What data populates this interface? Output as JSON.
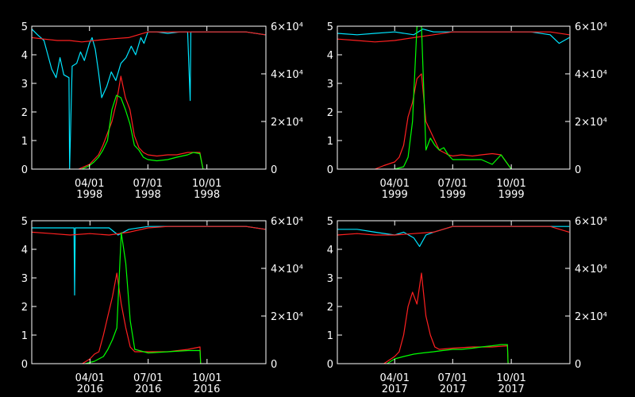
{
  "colors": {
    "background": "#000000",
    "axes": "#ffffff",
    "cyan": "#00e5ff",
    "green": "#00ff00",
    "red": "#ff2020"
  },
  "chart_data": [
    {
      "type": "line",
      "ylim": [
        0,
        5
      ],
      "y2lim": [
        0,
        60000
      ],
      "yticks": [
        "0",
        "1",
        "2",
        "3",
        "4",
        "5"
      ],
      "y2ticks": [
        "0",
        "2×10⁴",
        "4×10⁴",
        "6×10⁴"
      ],
      "xlim": [
        "1998-01-01",
        "1999-01-01"
      ],
      "xticks": [
        {
          "date": "1998-04-01",
          "label": "04/01",
          "year": "1998"
        },
        {
          "date": "1998-07-01",
          "label": "07/01",
          "year": "1998"
        },
        {
          "date": "1998-10-01",
          "label": "10/01",
          "year": "1998"
        }
      ],
      "series": [
        {
          "color": "cyan",
          "axis": "left",
          "x": [
            "1998-01-01",
            "1998-01-10",
            "1998-01-20",
            "1998-02-01",
            "1998-02-08",
            "1998-02-14",
            "1998-02-20",
            "1998-02-28",
            "1998-03-01",
            "1998-03-05",
            "1998-03-12",
            "1998-03-18",
            "1998-03-24",
            "1998-04-01",
            "1998-04-05",
            "1998-04-10",
            "1998-04-15",
            "1998-04-20",
            "1998-04-28",
            "1998-05-05",
            "1998-05-12",
            "1998-05-20",
            "1998-05-28",
            "1998-06-05",
            "1998-06-12",
            "1998-06-20",
            "1998-06-25",
            "1998-07-01",
            "1998-07-15",
            "1998-08-01",
            "1998-08-20",
            "1998-09-01",
            "1998-09-05",
            "1998-09-06",
            "1998-09-09",
            "1998-09-15",
            "1998-10-01",
            "1998-11-01",
            "1998-12-01",
            "1998-12-31"
          ],
          "y": [
            4.9,
            4.7,
            4.5,
            3.5,
            3.2,
            3.9,
            3.3,
            3.2,
            0,
            3.6,
            3.7,
            4.1,
            3.8,
            4.4,
            4.6,
            4.2,
            3.4,
            2.5,
            2.9,
            3.4,
            3.1,
            3.7,
            3.9,
            4.3,
            4.0,
            4.6,
            4.4,
            4.8,
            4.8,
            4.75,
            4.8,
            4.8,
            2.4,
            4.8,
            4.8,
            4.8,
            4.8,
            4.8,
            4.8,
            4.7
          ]
        },
        {
          "color": "red",
          "axis": "left",
          "x": [
            "1998-01-01",
            "1998-01-20",
            "1998-02-10",
            "1998-03-01",
            "1998-03-20",
            "1998-04-10",
            "1998-05-01",
            "1998-06-01",
            "1998-07-01",
            "1998-08-01",
            "1998-09-01",
            "1998-10-01",
            "1998-11-01",
            "1998-12-01",
            "1998-12-31"
          ],
          "y": [
            4.6,
            4.55,
            4.5,
            4.5,
            4.45,
            4.5,
            4.55,
            4.6,
            4.8,
            4.8,
            4.8,
            4.8,
            4.8,
            4.8,
            4.7
          ]
        },
        {
          "color": "red",
          "axis": "right",
          "x": [
            "1998-03-15",
            "1998-04-01",
            "1998-04-08",
            "1998-04-15",
            "1998-04-22",
            "1998-04-29",
            "1998-05-06",
            "1998-05-13",
            "1998-05-20",
            "1998-05-27",
            "1998-06-03",
            "1998-06-10",
            "1998-06-17",
            "1998-06-24",
            "1998-07-01",
            "1998-07-15",
            "1998-08-01",
            "1998-08-15",
            "1998-09-01",
            "1998-09-10",
            "1998-09-20",
            "1998-09-25"
          ],
          "y": [
            0,
            2000,
            4000,
            6000,
            10000,
            15000,
            20000,
            28000,
            39000,
            30000,
            25000,
            14000,
            9000,
            7000,
            6000,
            5500,
            6000,
            6000,
            7000,
            7000,
            7000,
            0
          ]
        },
        {
          "color": "green",
          "axis": "right",
          "x": [
            "1998-03-20",
            "1998-04-01",
            "1998-04-08",
            "1998-04-15",
            "1998-04-22",
            "1998-04-29",
            "1998-05-06",
            "1998-05-13",
            "1998-05-20",
            "1998-05-27",
            "1998-06-03",
            "1998-06-10",
            "1998-06-17",
            "1998-06-24",
            "1998-07-01",
            "1998-07-15",
            "1998-08-01",
            "1998-08-15",
            "1998-09-01",
            "1998-09-10",
            "1998-09-20",
            "1998-09-25"
          ],
          "y": [
            0,
            1500,
            3000,
            5000,
            8000,
            12000,
            25000,
            31000,
            30000,
            25000,
            19000,
            10000,
            8000,
            5000,
            4000,
            3500,
            4000,
            5000,
            6000,
            7000,
            6500,
            0
          ]
        }
      ]
    },
    {
      "type": "line",
      "ylim": [
        0,
        5
      ],
      "y2lim": [
        0,
        60000
      ],
      "yticks": [
        "0",
        "1",
        "2",
        "3",
        "4",
        "5"
      ],
      "y2ticks": [
        "0",
        "2×10⁴",
        "4×10⁴",
        "6×10⁴"
      ],
      "xlim": [
        "1999-01-01",
        "2000-01-01"
      ],
      "xticks": [
        {
          "date": "1999-04-01",
          "label": "04/01",
          "year": "1999"
        },
        {
          "date": "1999-07-01",
          "label": "07/01",
          "year": "1999"
        },
        {
          "date": "1999-10-01",
          "label": "10/01",
          "year": "1999"
        }
      ],
      "series": [
        {
          "color": "cyan",
          "axis": "left",
          "x": [
            "1999-01-01",
            "1999-02-01",
            "1999-03-01",
            "1999-04-01",
            "1999-05-01",
            "1999-05-15",
            "1999-06-01",
            "1999-07-01",
            "1999-08-01",
            "1999-09-01",
            "1999-10-01",
            "1999-11-01",
            "1999-12-01",
            "1999-12-15",
            "1999-12-31"
          ],
          "y": [
            4.75,
            4.7,
            4.75,
            4.8,
            4.7,
            4.9,
            4.8,
            4.8,
            4.8,
            4.8,
            4.8,
            4.8,
            4.7,
            4.4,
            4.6
          ]
        },
        {
          "color": "red",
          "axis": "left",
          "x": [
            "1999-01-01",
            "1999-02-01",
            "1999-03-01",
            "1999-04-01",
            "1999-05-01",
            "1999-06-01",
            "1999-07-01",
            "1999-08-01",
            "1999-09-01",
            "1999-10-01",
            "1999-11-01",
            "1999-12-01",
            "1999-12-31"
          ],
          "y": [
            4.55,
            4.5,
            4.45,
            4.5,
            4.6,
            4.7,
            4.8,
            4.8,
            4.8,
            4.8,
            4.8,
            4.8,
            4.7
          ]
        },
        {
          "color": "red",
          "axis": "right",
          "x": [
            "1999-03-01",
            "1999-03-15",
            "1999-04-01",
            "1999-04-08",
            "1999-04-15",
            "1999-04-22",
            "1999-04-29",
            "1999-05-06",
            "1999-05-13",
            "1999-05-20",
            "1999-05-27",
            "1999-06-03",
            "1999-06-10",
            "1999-06-17",
            "1999-06-24",
            "1999-07-01",
            "1999-07-15",
            "1999-08-01",
            "1999-08-15",
            "1999-09-01",
            "1999-09-15",
            "1999-10-01"
          ],
          "y": [
            0,
            1500,
            3000,
            5000,
            10000,
            22000,
            28000,
            38000,
            40000,
            20000,
            16000,
            12000,
            8000,
            7000,
            6000,
            5500,
            6000,
            5500,
            6000,
            6500,
            6000,
            0
          ]
        },
        {
          "color": "green",
          "axis": "right",
          "x": [
            "1999-04-01",
            "1999-04-15",
            "1999-04-22",
            "1999-04-29",
            "1999-05-06",
            "1999-05-13",
            "1999-05-20",
            "1999-05-27",
            "1999-06-03",
            "1999-06-10",
            "1999-06-17",
            "1999-06-24",
            "1999-07-01",
            "1999-08-01",
            "1999-08-15",
            "1999-09-01",
            "1999-09-15",
            "1999-10-01"
          ],
          "y": [
            0,
            1000,
            5000,
            20000,
            60000,
            60000,
            8000,
            13000,
            10000,
            8000,
            9000,
            6000,
            4000,
            4000,
            4000,
            2000,
            6000,
            0
          ]
        }
      ]
    },
    {
      "type": "line",
      "ylim": [
        0,
        5
      ],
      "y2lim": [
        0,
        60000
      ],
      "yticks": [
        "0",
        "1",
        "2",
        "3",
        "4",
        "5"
      ],
      "y2ticks": [
        "0",
        "2×10⁴",
        "4×10⁴",
        "6×10⁴"
      ],
      "xlim": [
        "2016-01-01",
        "2017-01-01"
      ],
      "xticks": [
        {
          "date": "2016-04-01",
          "label": "04/01",
          "year": "2016"
        },
        {
          "date": "2016-07-01",
          "label": "07/01",
          "year": "2016"
        },
        {
          "date": "2016-10-01",
          "label": "10/01",
          "year": "2016"
        }
      ],
      "series": [
        {
          "color": "cyan",
          "axis": "left",
          "x": [
            "2016-01-01",
            "2016-02-01",
            "2016-03-01",
            "2016-03-07",
            "2016-03-08",
            "2016-03-09",
            "2016-04-01",
            "2016-05-01",
            "2016-05-15",
            "2016-06-01",
            "2016-07-01",
            "2016-08-01",
            "2016-09-01",
            "2016-10-01",
            "2016-11-01",
            "2016-12-01",
            "2016-12-31"
          ],
          "y": [
            4.75,
            4.75,
            4.75,
            4.75,
            2.4,
            4.75,
            4.75,
            4.75,
            4.5,
            4.7,
            4.8,
            4.8,
            4.8,
            4.8,
            4.8,
            4.8,
            4.7
          ]
        },
        {
          "color": "red",
          "axis": "left",
          "x": [
            "2016-01-01",
            "2016-02-01",
            "2016-03-01",
            "2016-04-01",
            "2016-05-01",
            "2016-06-01",
            "2016-07-01",
            "2016-08-01",
            "2016-09-01",
            "2016-10-01",
            "2016-11-01",
            "2016-12-01",
            "2016-12-31"
          ],
          "y": [
            4.6,
            4.55,
            4.5,
            4.55,
            4.5,
            4.6,
            4.75,
            4.8,
            4.8,
            4.8,
            4.8,
            4.8,
            4.7
          ]
        },
        {
          "color": "red",
          "axis": "right",
          "x": [
            "2016-03-20",
            "2016-04-01",
            "2016-04-08",
            "2016-04-15",
            "2016-04-22",
            "2016-04-29",
            "2016-05-06",
            "2016-05-13",
            "2016-05-20",
            "2016-05-27",
            "2016-06-03",
            "2016-06-10",
            "2016-07-01",
            "2016-08-01",
            "2016-09-01",
            "2016-09-20",
            "2016-09-21"
          ],
          "y": [
            0,
            2000,
            4000,
            5000,
            12000,
            20000,
            28000,
            38000,
            25000,
            15000,
            7000,
            5000,
            5000,
            5000,
            6000,
            7000,
            0
          ]
        },
        {
          "color": "green",
          "axis": "right",
          "x": [
            "2016-03-25",
            "2016-04-08",
            "2016-04-22",
            "2016-04-29",
            "2016-05-06",
            "2016-05-13",
            "2016-05-20",
            "2016-05-27",
            "2016-06-03",
            "2016-06-10",
            "2016-07-01",
            "2016-08-01",
            "2016-09-01",
            "2016-09-20",
            "2016-09-21"
          ],
          "y": [
            0,
            1000,
            3000,
            6000,
            10000,
            15000,
            55000,
            42000,
            18000,
            6000,
            4500,
            5000,
            5500,
            5500,
            0
          ]
        }
      ]
    },
    {
      "type": "line",
      "ylim": [
        0,
        5
      ],
      "y2lim": [
        0,
        60000
      ],
      "yticks": [
        "0",
        "1",
        "2",
        "3",
        "4",
        "5"
      ],
      "y2ticks": [
        "0",
        "2×10⁴",
        "4×10⁴",
        "6×10⁴"
      ],
      "xlim": [
        "2017-01-01",
        "2018-01-01"
      ],
      "xticks": [
        {
          "date": "2017-04-01",
          "label": "04/01",
          "year": "2017"
        },
        {
          "date": "2017-07-01",
          "label": "07/01",
          "year": "2017"
        },
        {
          "date": "2017-10-01",
          "label": "10/01",
          "year": "2017"
        }
      ],
      "series": [
        {
          "color": "cyan",
          "axis": "left",
          "x": [
            "2017-01-01",
            "2017-02-01",
            "2017-03-01",
            "2017-04-01",
            "2017-04-15",
            "2017-05-01",
            "2017-05-10",
            "2017-05-20",
            "2017-06-01",
            "2017-07-01",
            "2017-08-01",
            "2017-09-01",
            "2017-10-01",
            "2017-11-01",
            "2017-12-01",
            "2017-12-31"
          ],
          "y": [
            4.7,
            4.7,
            4.6,
            4.5,
            4.6,
            4.4,
            4.1,
            4.5,
            4.6,
            4.8,
            4.8,
            4.8,
            4.8,
            4.8,
            4.8,
            4.8
          ]
        },
        {
          "color": "red",
          "axis": "left",
          "x": [
            "2017-01-01",
            "2017-02-01",
            "2017-03-01",
            "2017-04-01",
            "2017-05-01",
            "2017-06-01",
            "2017-07-01",
            "2017-08-01",
            "2017-09-01",
            "2017-10-01",
            "2017-11-01",
            "2017-12-01",
            "2017-12-31"
          ],
          "y": [
            4.5,
            4.55,
            4.5,
            4.5,
            4.55,
            4.6,
            4.8,
            4.8,
            4.8,
            4.8,
            4.8,
            4.8,
            4.6
          ]
        },
        {
          "color": "red",
          "axis": "right",
          "x": [
            "2017-03-15",
            "2017-04-01",
            "2017-04-08",
            "2017-04-15",
            "2017-04-22",
            "2017-04-29",
            "2017-05-06",
            "2017-05-13",
            "2017-05-20",
            "2017-05-27",
            "2017-06-03",
            "2017-06-10",
            "2017-07-01",
            "2017-08-01",
            "2017-09-01",
            "2017-09-25",
            "2017-09-26"
          ],
          "y": [
            0,
            3000,
            5000,
            12000,
            24000,
            30000,
            25000,
            38000,
            20000,
            12000,
            7000,
            6000,
            6500,
            7000,
            7000,
            7500,
            0
          ]
        },
        {
          "color": "green",
          "axis": "right",
          "x": [
            "2017-03-20",
            "2017-04-01",
            "2017-04-15",
            "2017-05-01",
            "2017-05-15",
            "2017-06-01",
            "2017-06-15",
            "2017-07-01",
            "2017-07-15",
            "2017-08-01",
            "2017-08-15",
            "2017-09-01",
            "2017-09-15",
            "2017-09-25",
            "2017-09-26"
          ],
          "y": [
            0,
            2000,
            3000,
            4000,
            4500,
            5000,
            5500,
            6000,
            6000,
            6500,
            7000,
            7500,
            8000,
            8000,
            0
          ]
        }
      ]
    }
  ]
}
